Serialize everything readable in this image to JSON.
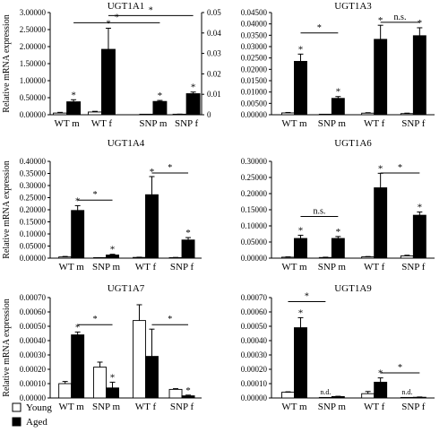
{
  "figure": {
    "legend": [
      {
        "label": "Young",
        "color": "#ffffff"
      },
      {
        "label": "Aged",
        "color": "#000000"
      }
    ]
  },
  "chart_data": [
    {
      "type": "bar",
      "title": "UGT1A1",
      "ylabel": "Relative mRNA expression",
      "categories": [
        "WT m",
        "WT f",
        "SNP m",
        "SNP f"
      ],
      "ylim": [
        0,
        3.0
      ],
      "yticks": [
        "0.00000",
        "0.50000",
        "1.00000",
        "1.50000",
        "2.00000",
        "2.50000",
        "3.00000"
      ],
      "y2lim": [
        0,
        0.05
      ],
      "y2ticks": [
        "0",
        "0.01",
        "0.02",
        "0.03",
        "0.04",
        "0.05"
      ],
      "series": [
        {
          "name": "Young",
          "values": [
            0.05,
            0.08,
            0.0001,
            0.0002
          ],
          "errors": [
            0.02,
            0.02,
            0.0001,
            0.0001
          ],
          "axis": [
            1,
            1,
            2,
            2
          ]
        },
        {
          "name": "Aged",
          "values": [
            0.38,
            1.92,
            0.0065,
            0.0103
          ],
          "errors": [
            0.06,
            0.62,
            0.0005,
            0.0008
          ],
          "axis": [
            1,
            1,
            2,
            2
          ]
        }
      ],
      "stars": [
        [
          0,
          1
        ],
        [
          1,
          1
        ],
        [
          2,
          1
        ],
        [
          3,
          1
        ]
      ],
      "brackets": [
        {
          "from": [
            0,
            1
          ],
          "to": [
            2,
            1
          ],
          "level": 0.9,
          "label": "*"
        },
        {
          "from": [
            1,
            1
          ],
          "to": [
            3,
            1
          ],
          "level": 0.97,
          "label": "*"
        }
      ]
    },
    {
      "type": "bar",
      "title": "UGT1A3",
      "ylabel": "",
      "categories": [
        "WT m",
        "SNP m",
        "WT f",
        "SNP f"
      ],
      "ylim": [
        0,
        0.04
      ],
      "yticks": [
        "0.00000",
        "0.00500",
        "0.01000",
        "0.01500",
        "0.02000",
        "0.02500",
        "0.03000",
        "0.03500",
        "0.04000",
        "0.04500"
      ],
      "series": [
        {
          "name": "Young",
          "values": [
            0.0008,
            0.0001,
            0.0007,
            0.0005
          ],
          "errors": [
            0.0002,
            0.0001,
            0.0002,
            0.0002
          ]
        },
        {
          "name": "Aged",
          "values": [
            0.0235,
            0.0072,
            0.0332,
            0.0348
          ],
          "errors": [
            0.0032,
            0.0008,
            0.0062,
            0.0035
          ]
        }
      ],
      "stars": [
        [
          0,
          1
        ],
        [
          1,
          1
        ],
        [
          2,
          1
        ],
        [
          3,
          1
        ]
      ],
      "brackets": [
        {
          "from": [
            0,
            1
          ],
          "to": [
            1,
            1
          ],
          "level": 0.8,
          "label": "*"
        },
        {
          "from": [
            2,
            1
          ],
          "to": [
            3,
            1
          ],
          "level": 0.905,
          "label": "n.s."
        }
      ]
    },
    {
      "type": "bar",
      "title": "UGT1A4",
      "ylabel": "Relative mRNA expression",
      "categories": [
        "WT m",
        "SNP m",
        "WT f",
        "SNP f"
      ],
      "ylim": [
        0,
        0.4
      ],
      "yticks": [
        "0.00000",
        "0.05000",
        "0.10000",
        "0.15000",
        "0.20000",
        "0.25000",
        "0.30000",
        "0.35000",
        "0.40000"
      ],
      "series": [
        {
          "name": "Young",
          "values": [
            0.005,
            0.001,
            0.003,
            0.002
          ],
          "errors": [
            0.002,
            0.001,
            0.001,
            0.001
          ]
        },
        {
          "name": "Aged",
          "values": [
            0.197,
            0.013,
            0.262,
            0.075
          ],
          "errors": [
            0.02,
            0.003,
            0.075,
            0.01
          ]
        }
      ],
      "stars": [
        [
          0,
          1
        ],
        [
          1,
          1
        ],
        [
          2,
          1
        ],
        [
          3,
          1
        ]
      ],
      "brackets": [
        {
          "from": [
            0,
            1
          ],
          "to": [
            1,
            1
          ],
          "level": 0.6,
          "label": "*"
        },
        {
          "from": [
            2,
            1
          ],
          "to": [
            3,
            1
          ],
          "level": 0.88,
          "label": "*"
        }
      ]
    },
    {
      "type": "bar",
      "title": "UGT1A6",
      "ylabel": "",
      "categories": [
        "WT m",
        "SNP m",
        "WT f",
        "SNP f"
      ],
      "ylim": [
        0,
        0.3
      ],
      "yticks": [
        "0.00000",
        "0.05000",
        "0.10000",
        "0.15000",
        "0.20000",
        "0.25000",
        "0.30000"
      ],
      "series": [
        {
          "name": "Young",
          "values": [
            0.003,
            0.002,
            0.004,
            0.007
          ],
          "errors": [
            0.001,
            0.001,
            0.001,
            0.002
          ]
        },
        {
          "name": "Aged",
          "values": [
            0.061,
            0.061,
            0.218,
            0.133
          ],
          "errors": [
            0.01,
            0.006,
            0.045,
            0.01
          ]
        }
      ],
      "stars": [
        [
          0,
          1
        ],
        [
          1,
          1
        ],
        [
          2,
          1
        ],
        [
          3,
          1
        ]
      ],
      "brackets": [
        {
          "from": [
            0,
            1
          ],
          "to": [
            1,
            1
          ],
          "level": 0.43,
          "label": "n.s."
        },
        {
          "from": [
            2,
            1
          ],
          "to": [
            3,
            1
          ],
          "level": 0.88,
          "label": "*"
        }
      ]
    },
    {
      "type": "bar",
      "title": "UGT1A7",
      "ylabel": "Relative mRNA expression",
      "categories": [
        "WT m",
        "SNP m",
        "WT f",
        "SNP f"
      ],
      "ylim": [
        0,
        0.0007
      ],
      "yticks": [
        "0.00000",
        "0.00010",
        "0.00020",
        "0.00030",
        "0.00040",
        "0.00050",
        "0.00060",
        "0.00070"
      ],
      "series": [
        {
          "name": "Young",
          "values": [
            0.0001,
            0.000215,
            0.00054,
            6e-05
          ],
          "errors": [
            1.5e-05,
            3.5e-05,
            0.00011,
            5e-06
          ]
        },
        {
          "name": "Aged",
          "values": [
            0.00044,
            7e-05,
            0.00029,
            1.5e-05
          ],
          "errors": [
            2e-05,
            4e-05,
            0.00019,
            5e-06
          ]
        }
      ],
      "stars": [
        [
          0,
          1
        ],
        [
          1,
          1
        ],
        [
          3,
          1
        ]
      ],
      "brackets": [
        {
          "from": [
            0,
            1
          ],
          "to": [
            1,
            1
          ],
          "level": 0.73,
          "label": "*"
        },
        {
          "from": [
            2,
            1
          ],
          "to": [
            3,
            1
          ],
          "level": 0.73,
          "label": "*"
        }
      ]
    },
    {
      "type": "bar",
      "title": "UGT1A9",
      "ylabel": "",
      "categories": [
        "WT m",
        "SNP m",
        "WT f",
        "SNP f"
      ],
      "ylim": [
        0,
        0.0007
      ],
      "yticks": [
        "0.00000",
        "0.00010",
        "0.00020",
        "0.00030",
        "0.00040",
        "0.00050",
        "0.00060",
        "0.00070"
      ],
      "series": [
        {
          "name": "Young",
          "values": [
            4e-05,
            0,
            3e-05,
            0
          ],
          "errors": [
            3e-06,
            0,
            1.5e-05,
            0
          ]
        },
        {
          "name": "Aged",
          "values": [
            0.00049,
            1e-05,
            0.00011,
            5e-06
          ],
          "errors": [
            7e-05,
            2e-06,
            3e-05,
            2e-06
          ]
        }
      ],
      "stars": [
        [
          0,
          1
        ],
        [
          2,
          1
        ]
      ],
      "brackets": [
        {
          "from": [
            0,
            0
          ],
          "to": [
            1,
            0
          ],
          "level": 0.96,
          "label": "*"
        },
        {
          "from": [
            2,
            1
          ],
          "to": [
            3,
            1
          ],
          "level": 0.25,
          "label": "*"
        }
      ],
      "nd": [
        [
          1,
          0
        ],
        [
          3,
          0
        ]
      ],
      "nd_label": "n.d."
    }
  ]
}
